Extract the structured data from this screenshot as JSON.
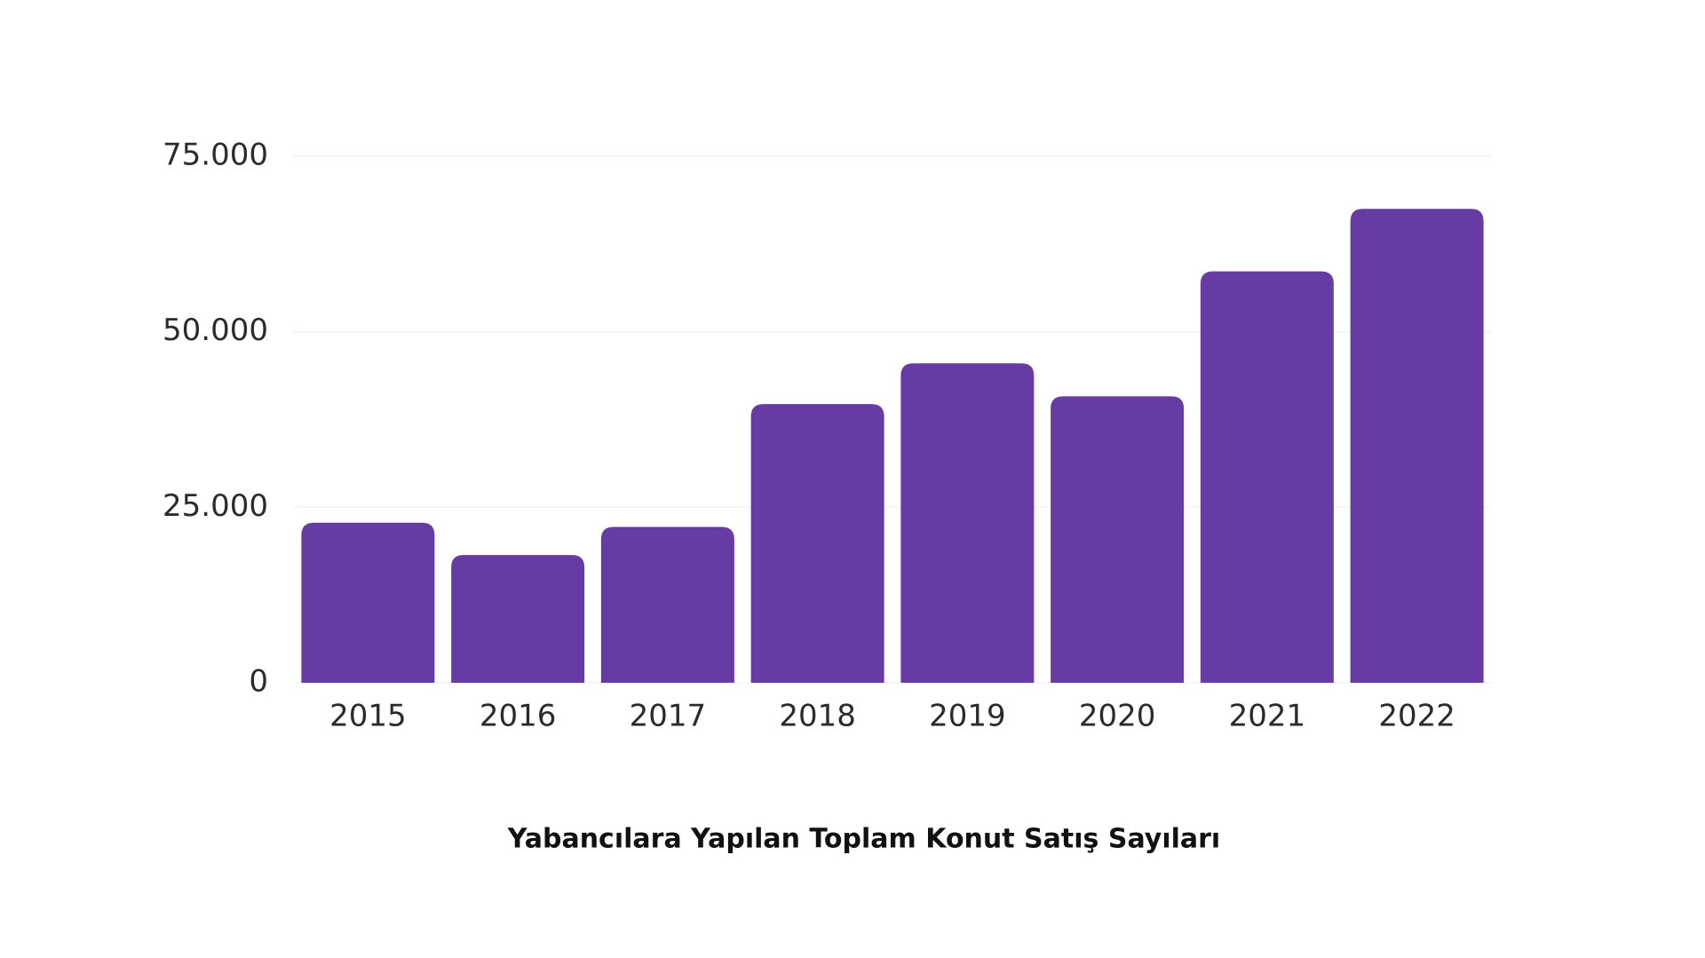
{
  "chart_data": {
    "type": "bar",
    "title": "Yabancılara Yapılan Toplam Konut Satış Sayıları",
    "categories": [
      "2015",
      "2016",
      "2017",
      "2018",
      "2019",
      "2020",
      "2021",
      "2022"
    ],
    "values": [
      22800,
      18200,
      22200,
      39700,
      45500,
      40800,
      58600,
      67500
    ],
    "color": "#663ba4",
    "ylim": [
      0,
      75000
    ],
    "yticks": [
      0,
      {
        "value": 25000,
        "label": "25.000"
      },
      {
        "value": 50000,
        "label": "50.000"
      },
      {
        "value": 75000,
        "label": "75.000"
      }
    ],
    "grid": true
  }
}
